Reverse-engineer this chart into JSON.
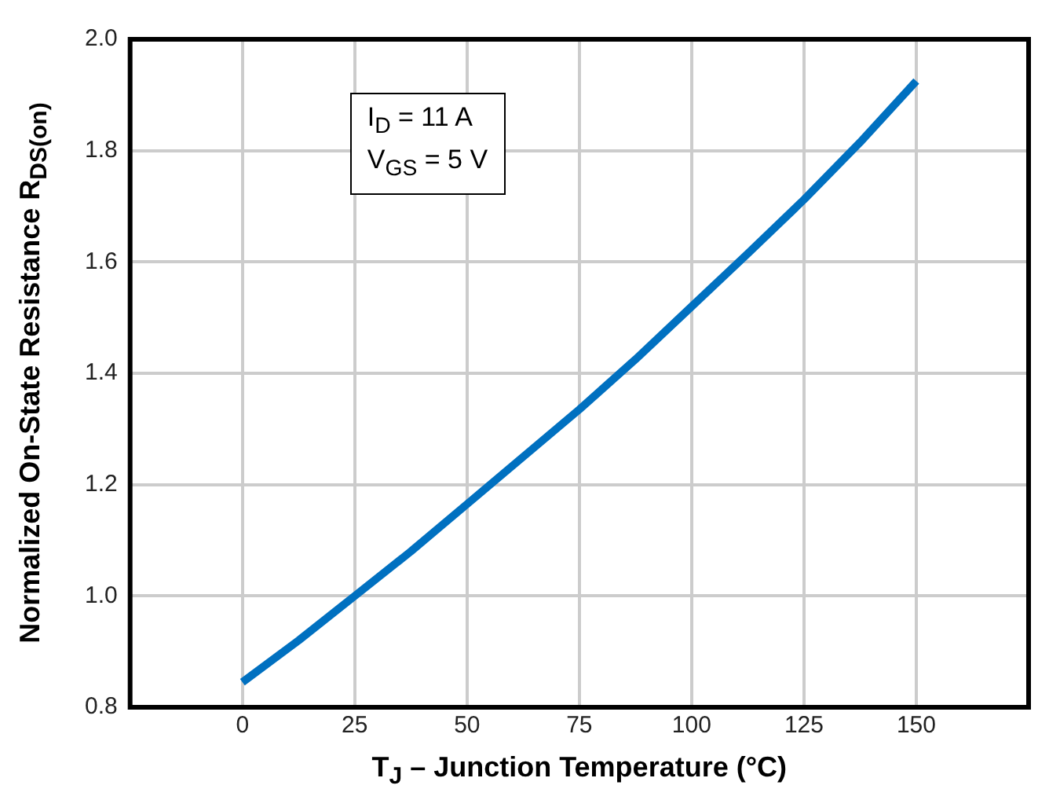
{
  "chart_data": {
    "type": "line",
    "xlabel": "T$_{J}$ – Junction Temperature (°C)",
    "ylabel": "Normalized On-State Resistance R$_{DS(on)}$",
    "annotations": [
      "I$_{D}$ = 11 A",
      "V$_{GS}$ = 5 V"
    ],
    "series": [
      {
        "color": "#0070c0",
        "x": [
          0,
          12.5,
          25,
          37.5,
          50,
          62.5,
          75,
          87.5,
          100,
          112.5,
          125,
          137.5,
          150
        ],
        "values": [
          0.845,
          0.92,
          1.0,
          1.08,
          1.165,
          1.25,
          1.335,
          1.425,
          1.52,
          1.615,
          1.712,
          1.815,
          1.925
        ]
      }
    ],
    "xlim": [
      -25,
      175
    ],
    "xticks": [
      0,
      25,
      50,
      75,
      100,
      125,
      150
    ],
    "ylim": [
      0.8,
      2.0
    ],
    "yticks": [
      0.8,
      {
        "value": 1,
        "label": "1.0"
      },
      1.2,
      1.4,
      1.6,
      1.8,
      {
        "value": 2,
        "label": "2.0"
      }
    ],
    "grid": true,
    "legend": false,
    "marker": "none",
    "line_style": "solid"
  }
}
